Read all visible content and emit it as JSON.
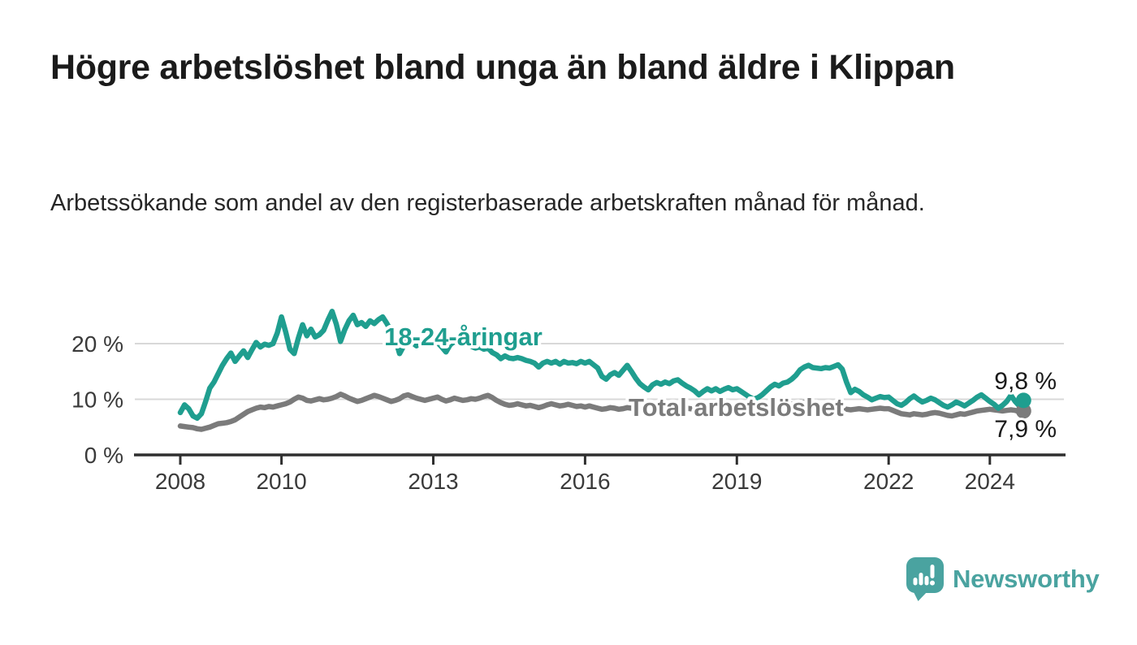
{
  "chart_data": {
    "type": "line",
    "title": "Högre arbetslöshet bland unga än bland äldre i Klippan",
    "subtitle": "Arbetssökande som andel av den registerbaserade arbetskraften månad för månad.",
    "unit": "%",
    "x_start_year": 2008.0,
    "x_step_months": 1,
    "x_ticks": [
      2008,
      2010,
      2013,
      2016,
      2019,
      2022,
      2024
    ],
    "y_ticks": [
      {
        "value": 0,
        "label": "0 %"
      },
      {
        "value": 10,
        "label": "10 %"
      },
      {
        "value": 20,
        "label": "20 %"
      }
    ],
    "ylim": [
      0,
      26.5
    ],
    "xlim": [
      2007.1,
      2025.5
    ],
    "grid": "horizontal",
    "legend_position": "inline-labels",
    "series": [
      {
        "name": "18-24-åringar",
        "color_key": "young",
        "end_label": "9,8 %",
        "end_value": 9.8,
        "values": [
          7.6,
          9.0,
          8.3,
          7.0,
          6.6,
          7.4,
          9.6,
          12.0,
          13.1,
          14.6,
          16.1,
          17.3,
          18.3,
          16.8,
          17.8,
          18.7,
          17.5,
          18.9,
          20.2,
          19.4,
          19.9,
          19.7,
          20.0,
          21.9,
          24.8,
          22.1,
          19.0,
          18.2,
          21.0,
          23.4,
          21.4,
          22.6,
          21.2,
          21.6,
          22.4,
          24.2,
          25.8,
          23.5,
          20.4,
          22.5,
          24.1,
          25.1,
          23.4,
          23.8,
          23.1,
          24.1,
          23.6,
          24.3,
          24.8,
          23.6,
          22.2,
          20.8,
          18.2,
          19.6,
          20.8,
          20.2,
          19.6,
          20.4,
          20.0,
          19.8,
          20.6,
          20.2,
          19.4,
          18.5,
          19.8,
          20.4,
          19.9,
          19.6,
          19.9,
          19.5,
          19.2,
          19.4,
          19.0,
          19.2,
          18.4,
          18.0,
          17.3,
          17.8,
          17.4,
          17.3,
          17.5,
          17.3,
          17.0,
          16.8,
          16.5,
          15.8,
          16.5,
          16.8,
          16.5,
          16.8,
          16.3,
          16.8,
          16.5,
          16.6,
          16.4,
          16.8,
          16.5,
          16.8,
          16.2,
          15.6,
          14.1,
          13.6,
          14.4,
          14.8,
          14.3,
          15.2,
          16.1,
          15.0,
          13.8,
          12.8,
          12.2,
          11.7,
          12.6,
          13.0,
          12.7,
          13.1,
          12.8,
          13.3,
          13.5,
          12.9,
          12.4,
          12.0,
          11.5,
          10.8,
          11.4,
          11.9,
          11.5,
          11.9,
          11.4,
          11.8,
          12.1,
          11.7,
          11.9,
          11.4,
          10.9,
          10.4,
          10.0,
          10.3,
          10.8,
          11.5,
          12.2,
          12.7,
          12.4,
          12.9,
          13.1,
          13.6,
          14.3,
          15.3,
          15.8,
          16.1,
          15.7,
          15.6,
          15.5,
          15.7,
          15.6,
          15.9,
          16.2,
          15.4,
          13.1,
          11.2,
          11.8,
          11.4,
          10.8,
          10.4,
          9.9,
          10.2,
          10.5,
          10.3,
          10.4,
          9.8,
          9.2,
          8.9,
          9.4,
          10.1,
          10.6,
          10.0,
          9.5,
          9.8,
          10.2,
          9.9,
          9.4,
          8.9,
          8.6,
          9.0,
          9.5,
          9.2,
          8.8,
          9.3,
          9.8,
          10.4,
          10.8,
          10.2,
          9.6,
          9.1,
          8.4,
          8.9,
          9.6,
          10.7,
          9.6,
          8.8,
          9.8
        ]
      },
      {
        "name": "Total arbetslöshet",
        "color_key": "total",
        "end_label": "7,9 %",
        "end_value": 7.9,
        "values": [
          5.2,
          5.1,
          5.0,
          4.9,
          4.7,
          4.6,
          4.8,
          5.0,
          5.3,
          5.6,
          5.7,
          5.8,
          6.0,
          6.3,
          6.8,
          7.3,
          7.8,
          8.1,
          8.4,
          8.6,
          8.5,
          8.7,
          8.6,
          8.8,
          9.0,
          9.2,
          9.5,
          10.0,
          10.4,
          10.2,
          9.8,
          9.7,
          9.9,
          10.1,
          9.9,
          10.0,
          10.2,
          10.5,
          10.9,
          10.6,
          10.2,
          9.9,
          9.6,
          9.8,
          10.1,
          10.4,
          10.7,
          10.5,
          10.2,
          9.9,
          9.6,
          9.8,
          10.1,
          10.6,
          10.8,
          10.5,
          10.2,
          10.0,
          9.8,
          10.0,
          10.2,
          10.4,
          10.0,
          9.7,
          9.9,
          10.2,
          10.0,
          9.8,
          9.9,
          10.1,
          10.0,
          10.2,
          10.5,
          10.7,
          10.3,
          9.8,
          9.4,
          9.1,
          8.9,
          9.0,
          9.2,
          9.0,
          8.8,
          8.9,
          8.7,
          8.5,
          8.7,
          9.0,
          9.2,
          9.0,
          8.8,
          8.9,
          9.1,
          8.9,
          8.7,
          8.8,
          8.6,
          8.8,
          8.6,
          8.4,
          8.2,
          8.3,
          8.5,
          8.4,
          8.2,
          8.3,
          8.5,
          8.4,
          8.3,
          8.5,
          8.7,
          8.5,
          8.3,
          8.4,
          8.6,
          8.5,
          8.3,
          8.4,
          8.6,
          8.5,
          8.4,
          8.3,
          8.2,
          8.3,
          8.5,
          8.6,
          8.4,
          8.3,
          8.4,
          8.5,
          8.4,
          8.5,
          8.6,
          8.5,
          8.4,
          8.5,
          8.6,
          8.7,
          8.6,
          8.5,
          8.6,
          8.7,
          8.8,
          8.9,
          9.0,
          9.1,
          9.3,
          9.5,
          9.4,
          9.3,
          9.2,
          9.1,
          9.0,
          8.9,
          8.8,
          8.7,
          8.5,
          8.4,
          8.2,
          8.1,
          8.2,
          8.3,
          8.2,
          8.1,
          8.2,
          8.3,
          8.4,
          8.3,
          8.3,
          8.0,
          7.7,
          7.4,
          7.3,
          7.2,
          7.4,
          7.3,
          7.2,
          7.3,
          7.5,
          7.6,
          7.5,
          7.3,
          7.1,
          7.0,
          7.2,
          7.4,
          7.3,
          7.5,
          7.7,
          7.9,
          8.0,
          8.1,
          8.2,
          8.1,
          8.0,
          7.9,
          8.0,
          8.1,
          8.0,
          7.8,
          7.9
        ]
      }
    ],
    "series_labels": [
      {
        "text": "18-24-åringar",
        "x_year": 2012.03,
        "y_pct": 19.7,
        "color_key": "young"
      },
      {
        "text": "Total arbetslöshet",
        "x_year": 2016.86,
        "y_pct": 7.0,
        "color_key": "total"
      }
    ]
  },
  "colors": {
    "young": "#1f9e8f",
    "total": "#7b7b7b",
    "grid": "#d8d8d8",
    "axis": "#2f2f2f",
    "tick_text": "#3a3a3a",
    "value_text": "#1a1a1a",
    "halo": "#ffffff",
    "brand": "#4aa3a0"
  },
  "footer": {
    "brand_name": "Newsworthy"
  }
}
